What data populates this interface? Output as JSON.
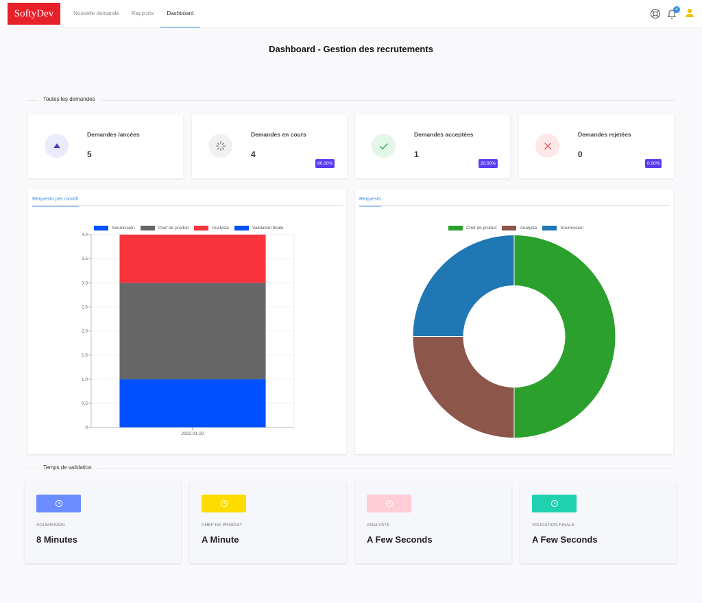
{
  "brand": {
    "name": "SoftyDev",
    "color": "#e8202a"
  },
  "nav": {
    "items": [
      {
        "label": "Nouvelle demande",
        "active": false
      },
      {
        "label": "Rapports",
        "active": false
      },
      {
        "label": "Dashboard",
        "active": true
      }
    ],
    "notifications_count": "4",
    "icons": [
      "lifebuoy-icon",
      "bell-icon",
      "user-icon"
    ]
  },
  "page_title": "Dashboard - Gestion des recrutements",
  "sections": {
    "all_requests": "Toutes les demandes",
    "validation_time": "Temps de validation"
  },
  "stats": [
    {
      "title": "Demandes lancées",
      "value": "5",
      "percent": "",
      "icon": "triangle-up-icon",
      "color": "#4b3fbf",
      "bg": "#ecebfb"
    },
    {
      "title": "Demandes en cours",
      "value": "4",
      "percent": "80.00%",
      "icon": "spinner-icon",
      "color": "#666666",
      "bg": "#f1f1f3"
    },
    {
      "title": "Demandes acceptées",
      "value": "1",
      "percent": "20.00%",
      "icon": "check-icon",
      "color": "#2ea84b",
      "bg": "#e3f7e8"
    },
    {
      "title": "Demandes rejetées",
      "value": "0",
      "percent": "0.00%",
      "icon": "close-icon",
      "color": "#e8404a",
      "bg": "#fde7e8"
    }
  ],
  "panels": {
    "bar_tab": "Requests per month",
    "pie_tab": "Requests"
  },
  "chart_data": [
    {
      "type": "bar",
      "stacked": true,
      "categories": [
        "2022-01-20"
      ],
      "series": [
        {
          "name": "Soumission",
          "values": [
            1
          ],
          "color": "#0050ff"
        },
        {
          "name": "Chef de produit",
          "values": [
            2
          ],
          "color": "#666666"
        },
        {
          "name": "Analyste",
          "values": [
            1
          ],
          "color": "#f8333c"
        },
        {
          "name": "Validation finale",
          "values": [
            0
          ],
          "color": "#0050ff"
        }
      ],
      "ylim": [
        0,
        4
      ],
      "yticks": [
        "0",
        "0.5",
        "1.0",
        "1.5",
        "2.0",
        "2.5",
        "3.0",
        "3.5",
        "4.0"
      ],
      "legend": "top",
      "grid": true
    },
    {
      "type": "pie",
      "donut": true,
      "labels": [
        "Chef de produit",
        "Analyste",
        "Soumission"
      ],
      "values": [
        2,
        1,
        1
      ],
      "colors": [
        "#2ca02c",
        "#8c564b",
        "#1f77b4"
      ],
      "legend": "top"
    }
  ],
  "validation_times": [
    {
      "label": "SOUMISSION",
      "value": "8 Minutes",
      "color": "#6a8cff",
      "icon": "clock-icon"
    },
    {
      "label": "CHEF DE PRODUIT",
      "value": "A Minute",
      "color": "#ffdc00",
      "icon": "clock-icon"
    },
    {
      "label": "ANALYSTE",
      "value": "A Few Seconds",
      "color": "#ffcdd6",
      "icon": "clock-icon"
    },
    {
      "label": "VALIDATION FINALE",
      "value": "A Few Seconds",
      "color": "#1fd1ae",
      "icon": "clock-icon"
    }
  ]
}
